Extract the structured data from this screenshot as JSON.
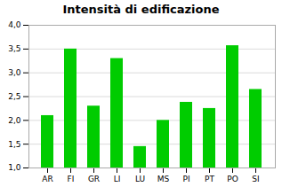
{
  "chart_data": {
    "type": "bar",
    "title": "Intensità di edificazione",
    "categories": [
      "AR",
      "FI",
      "GR",
      "LI",
      "LU",
      "MS",
      "PI",
      "PT",
      "PO",
      "SI"
    ],
    "values": [
      2.1,
      3.5,
      2.3,
      3.3,
      1.45,
      2.0,
      2.38,
      2.25,
      3.57,
      2.65
    ],
    "color": "#00cc00",
    "ylim": [
      1.0,
      4.0
    ],
    "yticks": [
      {
        "value": 1.0,
        "label": "1,0"
      },
      {
        "value": 1.5,
        "label": "1,5"
      },
      {
        "value": 2.0,
        "label": "2,0"
      },
      {
        "value": 2.5,
        "label": "2,5"
      },
      {
        "value": 3.0,
        "label": "3,0"
      },
      {
        "value": 3.5,
        "label": "3,5"
      },
      {
        "value": 4.0,
        "label": "4,0"
      }
    ],
    "grid": true
  }
}
